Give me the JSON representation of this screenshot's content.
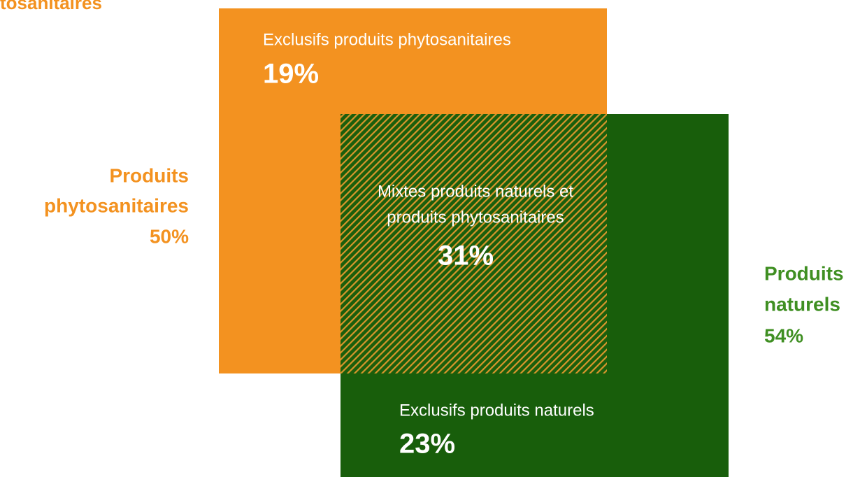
{
  "header": {
    "title": "tosanitaires"
  },
  "left_label": {
    "lines": [
      "Produits",
      "phytosanitaires",
      "50%"
    ]
  },
  "right_label": {
    "lines": [
      "Produits",
      "naturels",
      "54%"
    ]
  },
  "boxes": {
    "phyto_only": {
      "label": "Exclusifs produits phytosanitaires",
      "value": "19%"
    },
    "mixed": {
      "lines": [
        "Mixtes produits naturels et",
        "produits phytosanitaires"
      ],
      "value": "31%"
    },
    "natural_only": {
      "label": "Exclusifs produits naturels",
      "value": "23%"
    }
  }
}
